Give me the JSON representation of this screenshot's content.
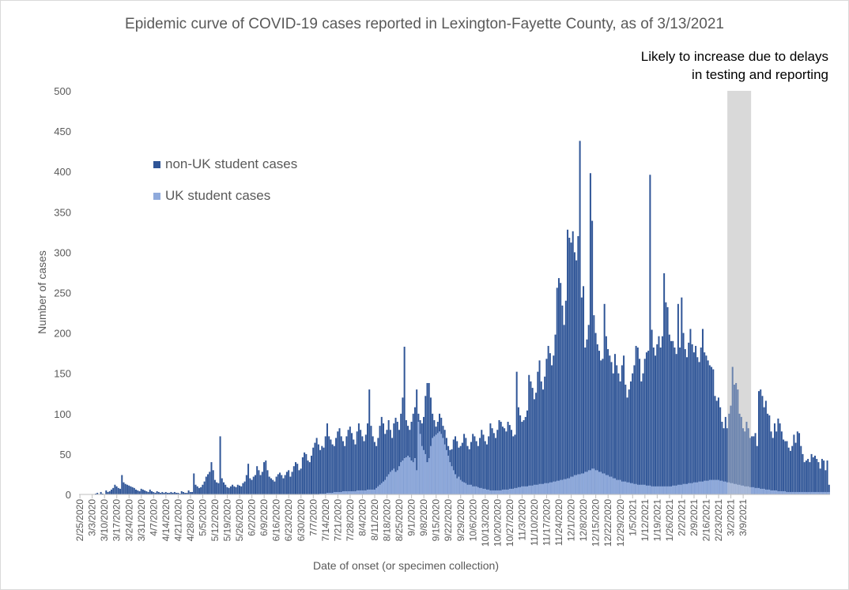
{
  "chart_data": {
    "type": "bar",
    "stacked": true,
    "title": "Epidemic curve of COVID-19 cases reported in Lexington-Fayette County, as of 3/13/2021",
    "xlabel": "Date of onset (or specimen collection)",
    "ylabel": "Number of cases",
    "ylim": [
      0,
      500
    ],
    "yticks": [
      0,
      50,
      100,
      150,
      200,
      250,
      300,
      350,
      400,
      450,
      500
    ],
    "grid": false,
    "legend_position": "upper-left",
    "x_tick_labels": [
      "2/25/2020",
      "3/3/2020",
      "3/10/2020",
      "3/17/2020",
      "3/24/2020",
      "3/31/2020",
      "4/7/2020",
      "4/14/2020",
      "4/21/2020",
      "4/28/2020",
      "5/5/2020",
      "5/12/2020",
      "5/19/2020",
      "5/26/2020",
      "6/2/2020",
      "6/9/2020",
      "6/16/2020",
      "6/23/2020",
      "6/30/2020",
      "7/7/2020",
      "7/14/2020",
      "7/21/2020",
      "7/28/2020",
      "8/4/2020",
      "8/11/2020",
      "8/18/2020",
      "8/25/2020",
      "9/1/2020",
      "9/8/2020",
      "9/15/2020",
      "9/22/2020",
      "9/29/2020",
      "10/6/2020",
      "10/13/2020",
      "10/20/2020",
      "10/27/2020",
      "11/3/2020",
      "11/10/2020",
      "11/17/2020",
      "11/24/2020",
      "12/1/2020",
      "12/8/2020",
      "12/15/2020",
      "12/22/2020",
      "12/29/2020",
      "1/5/2021",
      "1/12/2021",
      "1/19/2021",
      "1/26/2021",
      "2/2/2021",
      "2/9/2021",
      "2/16/2021",
      "2/23/2021",
      "3/2/2021",
      "3/9/2021"
    ],
    "x_start": "2/25/2020",
    "series": [
      {
        "name": "non-UK student cases",
        "color": "#2f5597",
        "values": [
          0,
          0,
          0,
          0,
          0,
          0,
          0,
          0,
          0,
          1,
          2,
          0,
          3,
          1,
          0,
          5,
          3,
          4,
          6,
          8,
          12,
          10,
          8,
          7,
          24,
          15,
          13,
          12,
          11,
          10,
          9,
          8,
          6,
          5,
          4,
          7,
          6,
          5,
          4,
          3,
          6,
          4,
          3,
          2,
          4,
          3,
          2,
          3,
          2,
          3,
          2,
          2,
          3,
          2,
          3,
          2,
          2,
          1,
          4,
          3,
          2,
          2,
          5,
          3,
          3,
          26,
          12,
          10,
          8,
          9,
          12,
          16,
          22,
          25,
          28,
          40,
          30,
          18,
          15,
          14,
          72,
          20,
          15,
          12,
          9,
          8,
          10,
          12,
          10,
          9,
          12,
          11,
          10,
          14,
          16,
          24,
          38,
          20,
          18,
          22,
          24,
          35,
          30,
          24,
          28,
          40,
          42,
          30,
          22,
          20,
          18,
          16,
          22,
          25,
          27,
          24,
          20,
          24,
          28,
          30,
          22,
          28,
          35,
          40,
          38,
          30,
          32,
          46,
          52,
          50,
          42,
          40,
          48,
          58,
          64,
          70,
          62,
          55,
          60,
          58,
          72,
          88,
          72,
          68,
          62,
          60,
          70,
          78,
          82,
          72,
          66,
          60,
          72,
          80,
          84,
          76,
          68,
          62,
          78,
          88,
          80,
          72,
          66,
          74,
          88,
          130,
          85,
          72,
          65,
          60,
          70,
          85,
          96,
          88,
          75,
          80,
          92,
          80,
          70,
          88,
          95,
          90,
          80,
          100,
          120,
          183,
          92,
          85,
          80,
          90,
          100,
          108,
          130,
          100,
          92,
          88,
          96,
          122,
          138,
          138,
          120,
          100,
          92,
          84,
          90,
          100,
          95,
          85,
          80,
          70,
          60,
          55,
          56,
          68,
          72,
          66,
          58,
          60,
          64,
          75,
          70,
          60,
          56,
          65,
          75,
          72,
          66,
          60,
          70,
          80,
          74,
          66,
          62,
          72,
          88,
          82,
          76,
          70,
          80,
          92,
          90,
          84,
          82,
          78,
          90,
          86,
          80,
          72,
          74,
          152,
          108,
          98,
          90,
          92,
          96,
          104,
          148,
          140,
          132,
          118,
          126,
          152,
          166,
          140,
          130,
          146,
          168,
          184,
          175,
          160,
          172,
          198,
          256,
          268,
          262,
          234,
          210,
          240,
          328,
          318,
          312,
          326,
          300,
          290,
          320,
          438,
          244,
          258,
          182,
          192,
          210,
          398,
          339,
          222,
          200,
          186,
          178,
          166,
          168,
          236,
          196,
          180,
          172,
          164,
          150,
          174,
          160,
          150,
          140,
          160,
          172,
          136,
          120,
          130,
          140,
          150,
          160,
          184,
          182,
          168,
          140,
          150,
          168,
          176,
          178,
          396,
          204,
          182,
          172,
          186,
          196,
          182,
          196,
          274,
          238,
          232,
          198,
          190,
          190,
          182,
          174,
          236,
          182,
          244,
          200,
          180,
          170,
          188,
          205,
          186,
          176,
          184,
          170,
          164,
          182,
          205,
          176,
          172,
          166,
          160,
          158,
          155,
          122,
          116,
          120,
          108,
          90,
          82,
          96,
          82,
          100,
          110,
          158,
          136,
          138,
          130,
          100,
          96,
          82,
          78,
          90,
          82,
          70,
          72,
          72,
          76,
          60,
          128,
          130,
          122,
          108,
          116,
          100,
          98,
          78,
          70,
          88,
          78,
          94,
          88,
          78,
          68,
          66,
          66,
          58,
          54,
          60,
          74,
          64,
          78,
          76,
          60,
          50,
          40,
          42,
          44,
          40,
          50,
          46,
          48,
          44,
          40,
          32,
          44,
          42,
          30,
          42,
          12
        ]
      },
      {
        "name": "UK student cases",
        "color": "#8faadc",
        "values": [
          0,
          0,
          0,
          0,
          0,
          0,
          0,
          0,
          0,
          0,
          0,
          0,
          0,
          0,
          0,
          0,
          0,
          0,
          0,
          0,
          0,
          0,
          0,
          0,
          0,
          0,
          0,
          0,
          0,
          0,
          0,
          0,
          0,
          0,
          0,
          0,
          0,
          0,
          0,
          0,
          0,
          0,
          0,
          0,
          0,
          0,
          0,
          0,
          0,
          0,
          0,
          0,
          0,
          0,
          0,
          0,
          0,
          0,
          0,
          0,
          0,
          0,
          0,
          0,
          0,
          0,
          0,
          0,
          0,
          0,
          0,
          0,
          0,
          0,
          0,
          0,
          0,
          0,
          0,
          0,
          0,
          0,
          0,
          0,
          0,
          0,
          0,
          0,
          0,
          0,
          0,
          0,
          0,
          0,
          0,
          0,
          0,
          0,
          0,
          0,
          0,
          0,
          0,
          0,
          0,
          0,
          0,
          0,
          0,
          0,
          0,
          0,
          0,
          0,
          0,
          0,
          0,
          0,
          0,
          0,
          0,
          0,
          0,
          0,
          0,
          0,
          0,
          0,
          0,
          0,
          0,
          0,
          0,
          0,
          0,
          0,
          0,
          1,
          1,
          1,
          1,
          2,
          2,
          2,
          2,
          3,
          3,
          3,
          3,
          3,
          4,
          4,
          4,
          4,
          4,
          4,
          4,
          4,
          5,
          5,
          5,
          5,
          5,
          5,
          6,
          6,
          6,
          6,
          6,
          8,
          10,
          12,
          14,
          16,
          18,
          22,
          25,
          28,
          30,
          32,
          28,
          30,
          35,
          40,
          42,
          45,
          46,
          48,
          46,
          42,
          40,
          45,
          30,
          90,
          75,
          60,
          55,
          50,
          40,
          45,
          60,
          70,
          72,
          74,
          76,
          78,
          75,
          70,
          62,
          55,
          48,
          40,
          35,
          30,
          25,
          20,
          22,
          18,
          16,
          15,
          14,
          12,
          12,
          12,
          10,
          10,
          10,
          9,
          8,
          8,
          7,
          7,
          6,
          6,
          5,
          5,
          5,
          5,
          5,
          5,
          5,
          6,
          6,
          6,
          6,
          7,
          7,
          7,
          8,
          8,
          9,
          9,
          10,
          10,
          10,
          10,
          11,
          11,
          11,
          12,
          12,
          12,
          13,
          13,
          13,
          14,
          14,
          14,
          15,
          15,
          16,
          16,
          17,
          17,
          18,
          18,
          19,
          19,
          20,
          20,
          22,
          22,
          24,
          24,
          25,
          25,
          26,
          26,
          28,
          28,
          30,
          30,
          32,
          32,
          30,
          30,
          28,
          28,
          26,
          26,
          24,
          24,
          22,
          22,
          20,
          20,
          18,
          18,
          18,
          16,
          16,
          16,
          15,
          15,
          14,
          14,
          13,
          13,
          12,
          12,
          12,
          12,
          12,
          11,
          11,
          11,
          10,
          10,
          10,
          10,
          10,
          10,
          10,
          10,
          10,
          10,
          10,
          10,
          11,
          11,
          11,
          12,
          12,
          12,
          13,
          13,
          13,
          14,
          14,
          14,
          15,
          15,
          15,
          16,
          16,
          16,
          17,
          17,
          17,
          18,
          18,
          18,
          18,
          18,
          18,
          17,
          17,
          16,
          16,
          15,
          15,
          14,
          14,
          13,
          13,
          12,
          12,
          11,
          11,
          10,
          10,
          10,
          9,
          9,
          9,
          8,
          8,
          8,
          7,
          7,
          7,
          6,
          6,
          6,
          5,
          5,
          5,
          5,
          4,
          4,
          4,
          4,
          4,
          3,
          3,
          3,
          3,
          3,
          3,
          3,
          3,
          3,
          3,
          3,
          3,
          3,
          3,
          3,
          3,
          3,
          3,
          3,
          3,
          3,
          3,
          3,
          3,
          3,
          3,
          3,
          3,
          3,
          3,
          3,
          3,
          3,
          3,
          3,
          3,
          3,
          3
        ]
      }
    ],
    "shaded_region": {
      "label": "Likely to increase due to delays in testing and reporting",
      "from": "3/1/2021",
      "to": "3/13/2021",
      "color": "#d9d9d9"
    }
  }
}
